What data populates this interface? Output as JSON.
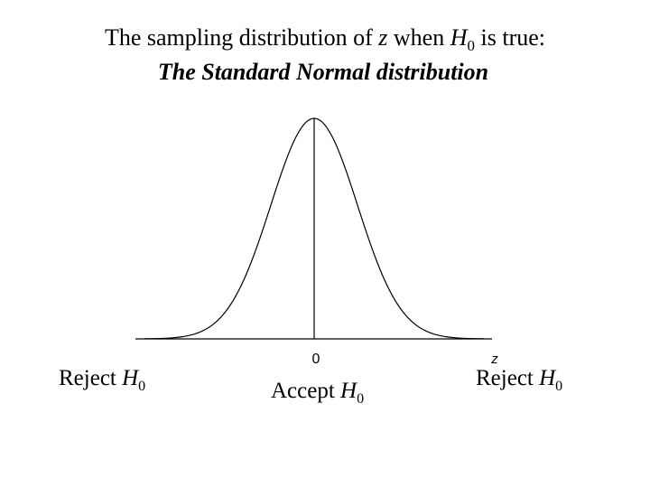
{
  "title": {
    "line1": {
      "text1": "The sampling distribution of ",
      "var": "z",
      "text2": " when ",
      "h": "H",
      "sub": "0",
      "text3": " is true:"
    },
    "line2": "The Standard Normal distribution"
  },
  "axis": {
    "center_label": "0",
    "axis_label": "z"
  },
  "regions": [
    {
      "word": "Reject ",
      "h": "H",
      "sub": "0"
    },
    {
      "word": "Accept ",
      "h": "H",
      "sub": "0"
    },
    {
      "word": "Reject ",
      "h": "H",
      "sub": "0"
    }
  ]
}
